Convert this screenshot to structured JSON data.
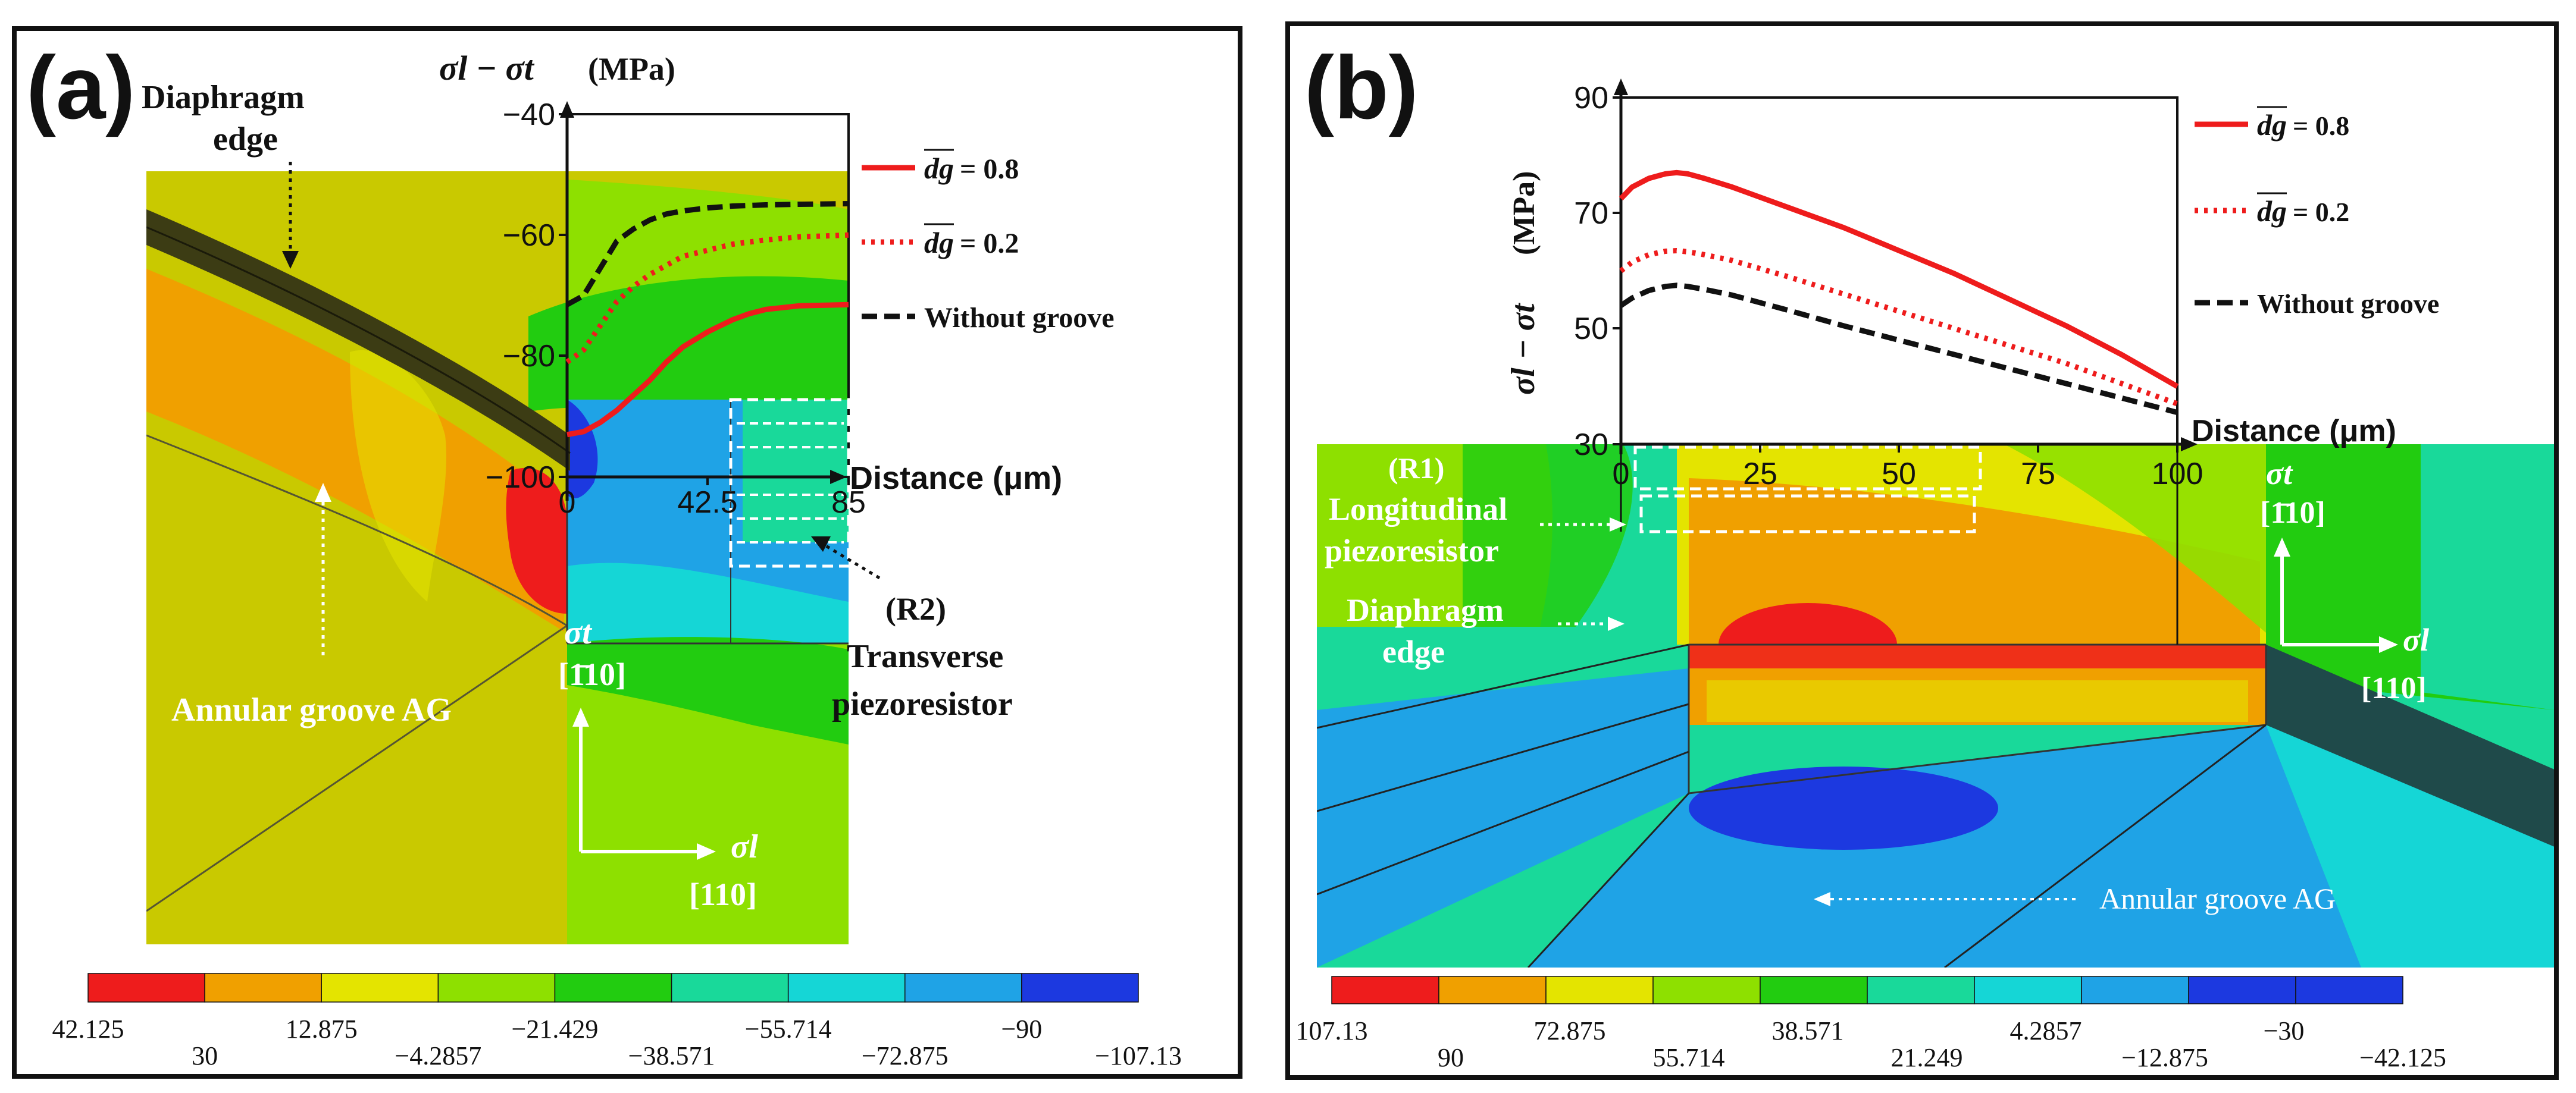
{
  "colors": {
    "red": "#ee1c1c",
    "orange": "#f0a000",
    "yellow": "#e4e400",
    "olive": "#c9c900",
    "lightgreen": "#8ee000",
    "green": "#22cc10",
    "teal": "#19d99a",
    "cyan": "#15d6d6",
    "skyblue": "#1fa3e6",
    "blue": "#1c39e0",
    "diaphragm_edge": "#3c3c14"
  },
  "chart_data": [
    {
      "panel": "(a)",
      "type": "line",
      "ylabel": "σl − σt (MPa)",
      "xlabel": "Distance (μm)",
      "ylim": [
        -100,
        -40
      ],
      "xlim": [
        0,
        85
      ],
      "yticks": [
        "−40",
        "−60",
        "−80",
        "−100"
      ],
      "xticks": [
        "0",
        "42.5",
        "85"
      ],
      "legend": [
        "dg = 0.8",
        "dg = 0.2",
        "Without groove"
      ],
      "legend_position": "right",
      "series": [
        {
          "name": "dg = 0.8",
          "style": "solid",
          "color": "#ee1c1c",
          "x": [
            0,
            5,
            10,
            15,
            20,
            25,
            30,
            35,
            42.5,
            50,
            55,
            60,
            70,
            85
          ],
          "y": [
            -93,
            -92.5,
            -91,
            -89,
            -86.5,
            -84,
            -81,
            -78.5,
            -76,
            -74,
            -73,
            -72.3,
            -71.7,
            -71.5
          ]
        },
        {
          "name": "dg = 0.2",
          "style": "dotted",
          "color": "#ee1c1c",
          "x": [
            0,
            5,
            10,
            15,
            20,
            25,
            30,
            35,
            42.5,
            50,
            60,
            70,
            85
          ],
          "y": [
            -81,
            -79,
            -75,
            -71,
            -68.5,
            -66.5,
            -65,
            -63.5,
            -62.5,
            -61.5,
            -60.8,
            -60.3,
            -60
          ]
        },
        {
          "name": "Without groove",
          "style": "dashed",
          "color": "#111111",
          "x": [
            0,
            5,
            10,
            15,
            20,
            25,
            30,
            35,
            42.5,
            50,
            60,
            70,
            85
          ],
          "y": [
            -71.5,
            -70,
            -65.5,
            -61,
            -59,
            -57.5,
            -56.5,
            -56,
            -55.5,
            -55.2,
            -55,
            -54.9,
            -54.8
          ]
        }
      ],
      "contour_legend": [
        "42.125",
        "30",
        "12.875",
        "−4.2857",
        "−21.429",
        "−38.571",
        "−55.714",
        "−72.875",
        "−90",
        "−107.13"
      ]
    },
    {
      "panel": "(b)",
      "type": "line",
      "ylabel": "σl − σt (MPa)",
      "xlabel": "Distance (μm)",
      "ylim": [
        30,
        90
      ],
      "xlim": [
        0,
        100
      ],
      "yticks": [
        "90",
        "70",
        "50",
        "30"
      ],
      "xticks": [
        "0",
        "25",
        "50",
        "75",
        "100"
      ],
      "legend": [
        "dg = 0.8",
        "dg = 0.2",
        "Without groove"
      ],
      "legend_position": "right",
      "series": [
        {
          "name": "dg = 0.8",
          "style": "solid",
          "color": "#ee1c1c",
          "x": [
            0,
            2,
            5,
            8,
            10,
            12,
            15,
            20,
            30,
            40,
            50,
            60,
            70,
            80,
            90,
            100
          ],
          "y": [
            72.5,
            74.5,
            76,
            76.8,
            77,
            76.8,
            76,
            74.5,
            71,
            67.5,
            63.5,
            59.5,
            55,
            50.5,
            45.5,
            40
          ]
        },
        {
          "name": "dg = 0.2",
          "style": "dotted",
          "color": "#ee1c1c",
          "x": [
            0,
            2,
            5,
            8,
            10,
            12,
            15,
            20,
            30,
            40,
            50,
            60,
            70,
            80,
            90,
            100
          ],
          "y": [
            60,
            61.5,
            62.8,
            63.4,
            63.5,
            63.3,
            62.8,
            61.8,
            59,
            56,
            53,
            50,
            47,
            44,
            40.5,
            37
          ]
        },
        {
          "name": "Without groove",
          "style": "dashed",
          "color": "#111111",
          "x": [
            0,
            2,
            5,
            8,
            10,
            12,
            15,
            20,
            30,
            40,
            50,
            60,
            70,
            80,
            90,
            100
          ],
          "y": [
            54,
            55.3,
            56.6,
            57.3,
            57.5,
            57.3,
            56.8,
            55.8,
            53.2,
            50.5,
            48,
            45.5,
            43,
            40.5,
            38,
            35.5
          ]
        }
      ],
      "contour_legend": [
        "107.13",
        "90",
        "72.875",
        "55.714",
        "38.571",
        "21.249",
        "4.2857",
        "−12.875",
        "−30",
        "−42.125"
      ]
    }
  ],
  "panel_a": {
    "label": "(a)",
    "ylabel_main": "σl − σt",
    "ylabel_unit": "(MPa)",
    "xlabel": "Distance (μm)",
    "legend_08": "= 0.8",
    "legend_02": "= 0.2",
    "legend_without": "Without groove",
    "dg_symbol": "dg",
    "diaphragm_edge_line1": "Diaphragm",
    "diaphragm_edge_line2": "edge",
    "annular_groove": "Annular groove AG",
    "r2_line1": "(R2)",
    "r2_line2": "Transverse",
    "r2_line3": "piezoresistor",
    "sigma_t": "σt",
    "sigma_l": "σl",
    "dir_t": "[1̄10]",
    "dir_l": "[110]"
  },
  "panel_b": {
    "label": "(b)",
    "ylabel_main": "σl − σt",
    "ylabel_unit": "(MPa)",
    "xlabel": "Distance (μm)",
    "legend_08": "= 0.8",
    "legend_02": "= 0.2",
    "legend_without": "Without groove",
    "dg_symbol": "dg",
    "r1_line1": "(R1)",
    "r1_line2": "Longitudinal",
    "r1_line3": "piezoresistor",
    "diaphragm_edge_line1": "Diaphragm",
    "diaphragm_edge_line2": "edge",
    "annular_groove": "Annular groove AG",
    "sigma_t": "σt",
    "sigma_l": "σl",
    "dir_t": "[1̄10]",
    "dir_l": "[110]"
  }
}
